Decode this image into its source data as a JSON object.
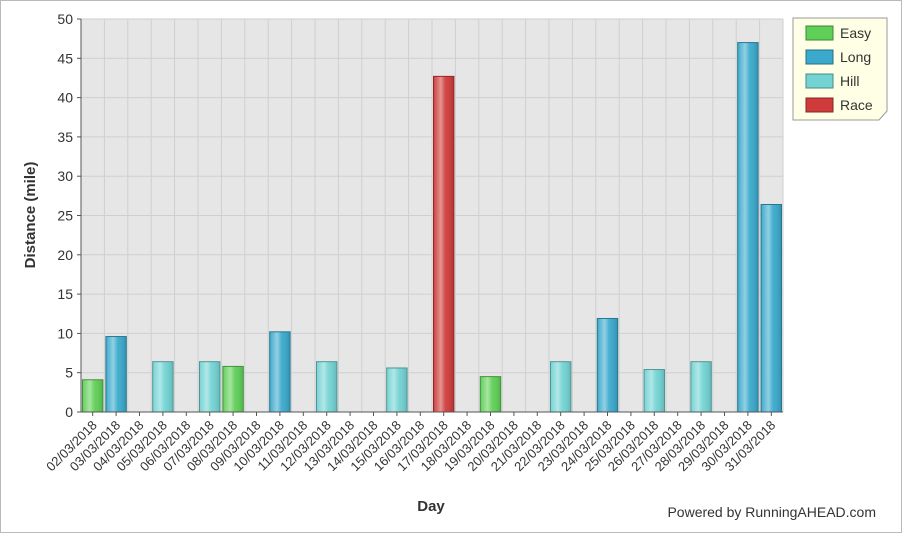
{
  "chart_data": {
    "type": "bar",
    "xlabel": "Day",
    "ylabel": "Distance (mile)",
    "ylim": [
      0,
      50
    ],
    "yticks": [
      0,
      5,
      10,
      15,
      20,
      25,
      30,
      35,
      40,
      45,
      50
    ],
    "grid": true,
    "legend_position": "top-right",
    "categories": [
      "02/03/2018",
      "03/03/2018",
      "04/03/2018",
      "05/03/2018",
      "06/03/2018",
      "07/03/2018",
      "08/03/2018",
      "09/03/2018",
      "10/03/2018",
      "11/03/2018",
      "12/03/2018",
      "13/03/2018",
      "14/03/2018",
      "15/03/2018",
      "16/03/2018",
      "17/03/2018",
      "18/03/2018",
      "19/03/2018",
      "20/03/2018",
      "21/03/2018",
      "22/03/2018",
      "23/03/2018",
      "24/03/2018",
      "25/03/2018",
      "26/03/2018",
      "27/03/2018",
      "28/03/2018",
      "29/03/2018",
      "30/03/2018",
      "31/03/2018"
    ],
    "series": [
      {
        "name": "Easy",
        "color": "#5fcf57",
        "values": [
          4.1,
          null,
          null,
          null,
          null,
          null,
          5.8,
          null,
          null,
          null,
          null,
          null,
          null,
          null,
          null,
          null,
          null,
          4.5,
          null,
          null,
          null,
          null,
          null,
          null,
          null,
          null,
          null,
          null,
          null,
          null
        ]
      },
      {
        "name": "Long",
        "color": "#3aa9cc",
        "values": [
          null,
          9.6,
          null,
          null,
          null,
          null,
          null,
          null,
          10.2,
          null,
          null,
          null,
          null,
          null,
          null,
          null,
          null,
          null,
          null,
          null,
          null,
          null,
          11.9,
          null,
          null,
          null,
          null,
          null,
          47.0,
          26.4
        ]
      },
      {
        "name": "Hill",
        "color": "#73d3d3",
        "values": [
          null,
          null,
          null,
          6.4,
          null,
          6.4,
          null,
          null,
          null,
          null,
          6.4,
          null,
          null,
          5.6,
          null,
          null,
          null,
          null,
          null,
          null,
          6.4,
          null,
          null,
          null,
          5.4,
          null,
          6.4,
          null,
          null,
          null
        ]
      },
      {
        "name": "Race",
        "color": "#cf3b3b",
        "values": [
          null,
          null,
          null,
          null,
          null,
          null,
          null,
          null,
          null,
          null,
          null,
          null,
          null,
          null,
          null,
          42.7,
          null,
          null,
          null,
          null,
          null,
          null,
          null,
          null,
          null,
          null,
          null,
          null,
          null,
          null
        ]
      }
    ]
  },
  "legend": {
    "items": [
      {
        "label": "Easy",
        "color": "#5fcf57"
      },
      {
        "label": "Long",
        "color": "#3aa9cc"
      },
      {
        "label": "Hill",
        "color": "#73d3d3"
      },
      {
        "label": "Race",
        "color": "#cf3b3b"
      }
    ]
  },
  "credit": "Powered by RunningAHEAD.com"
}
